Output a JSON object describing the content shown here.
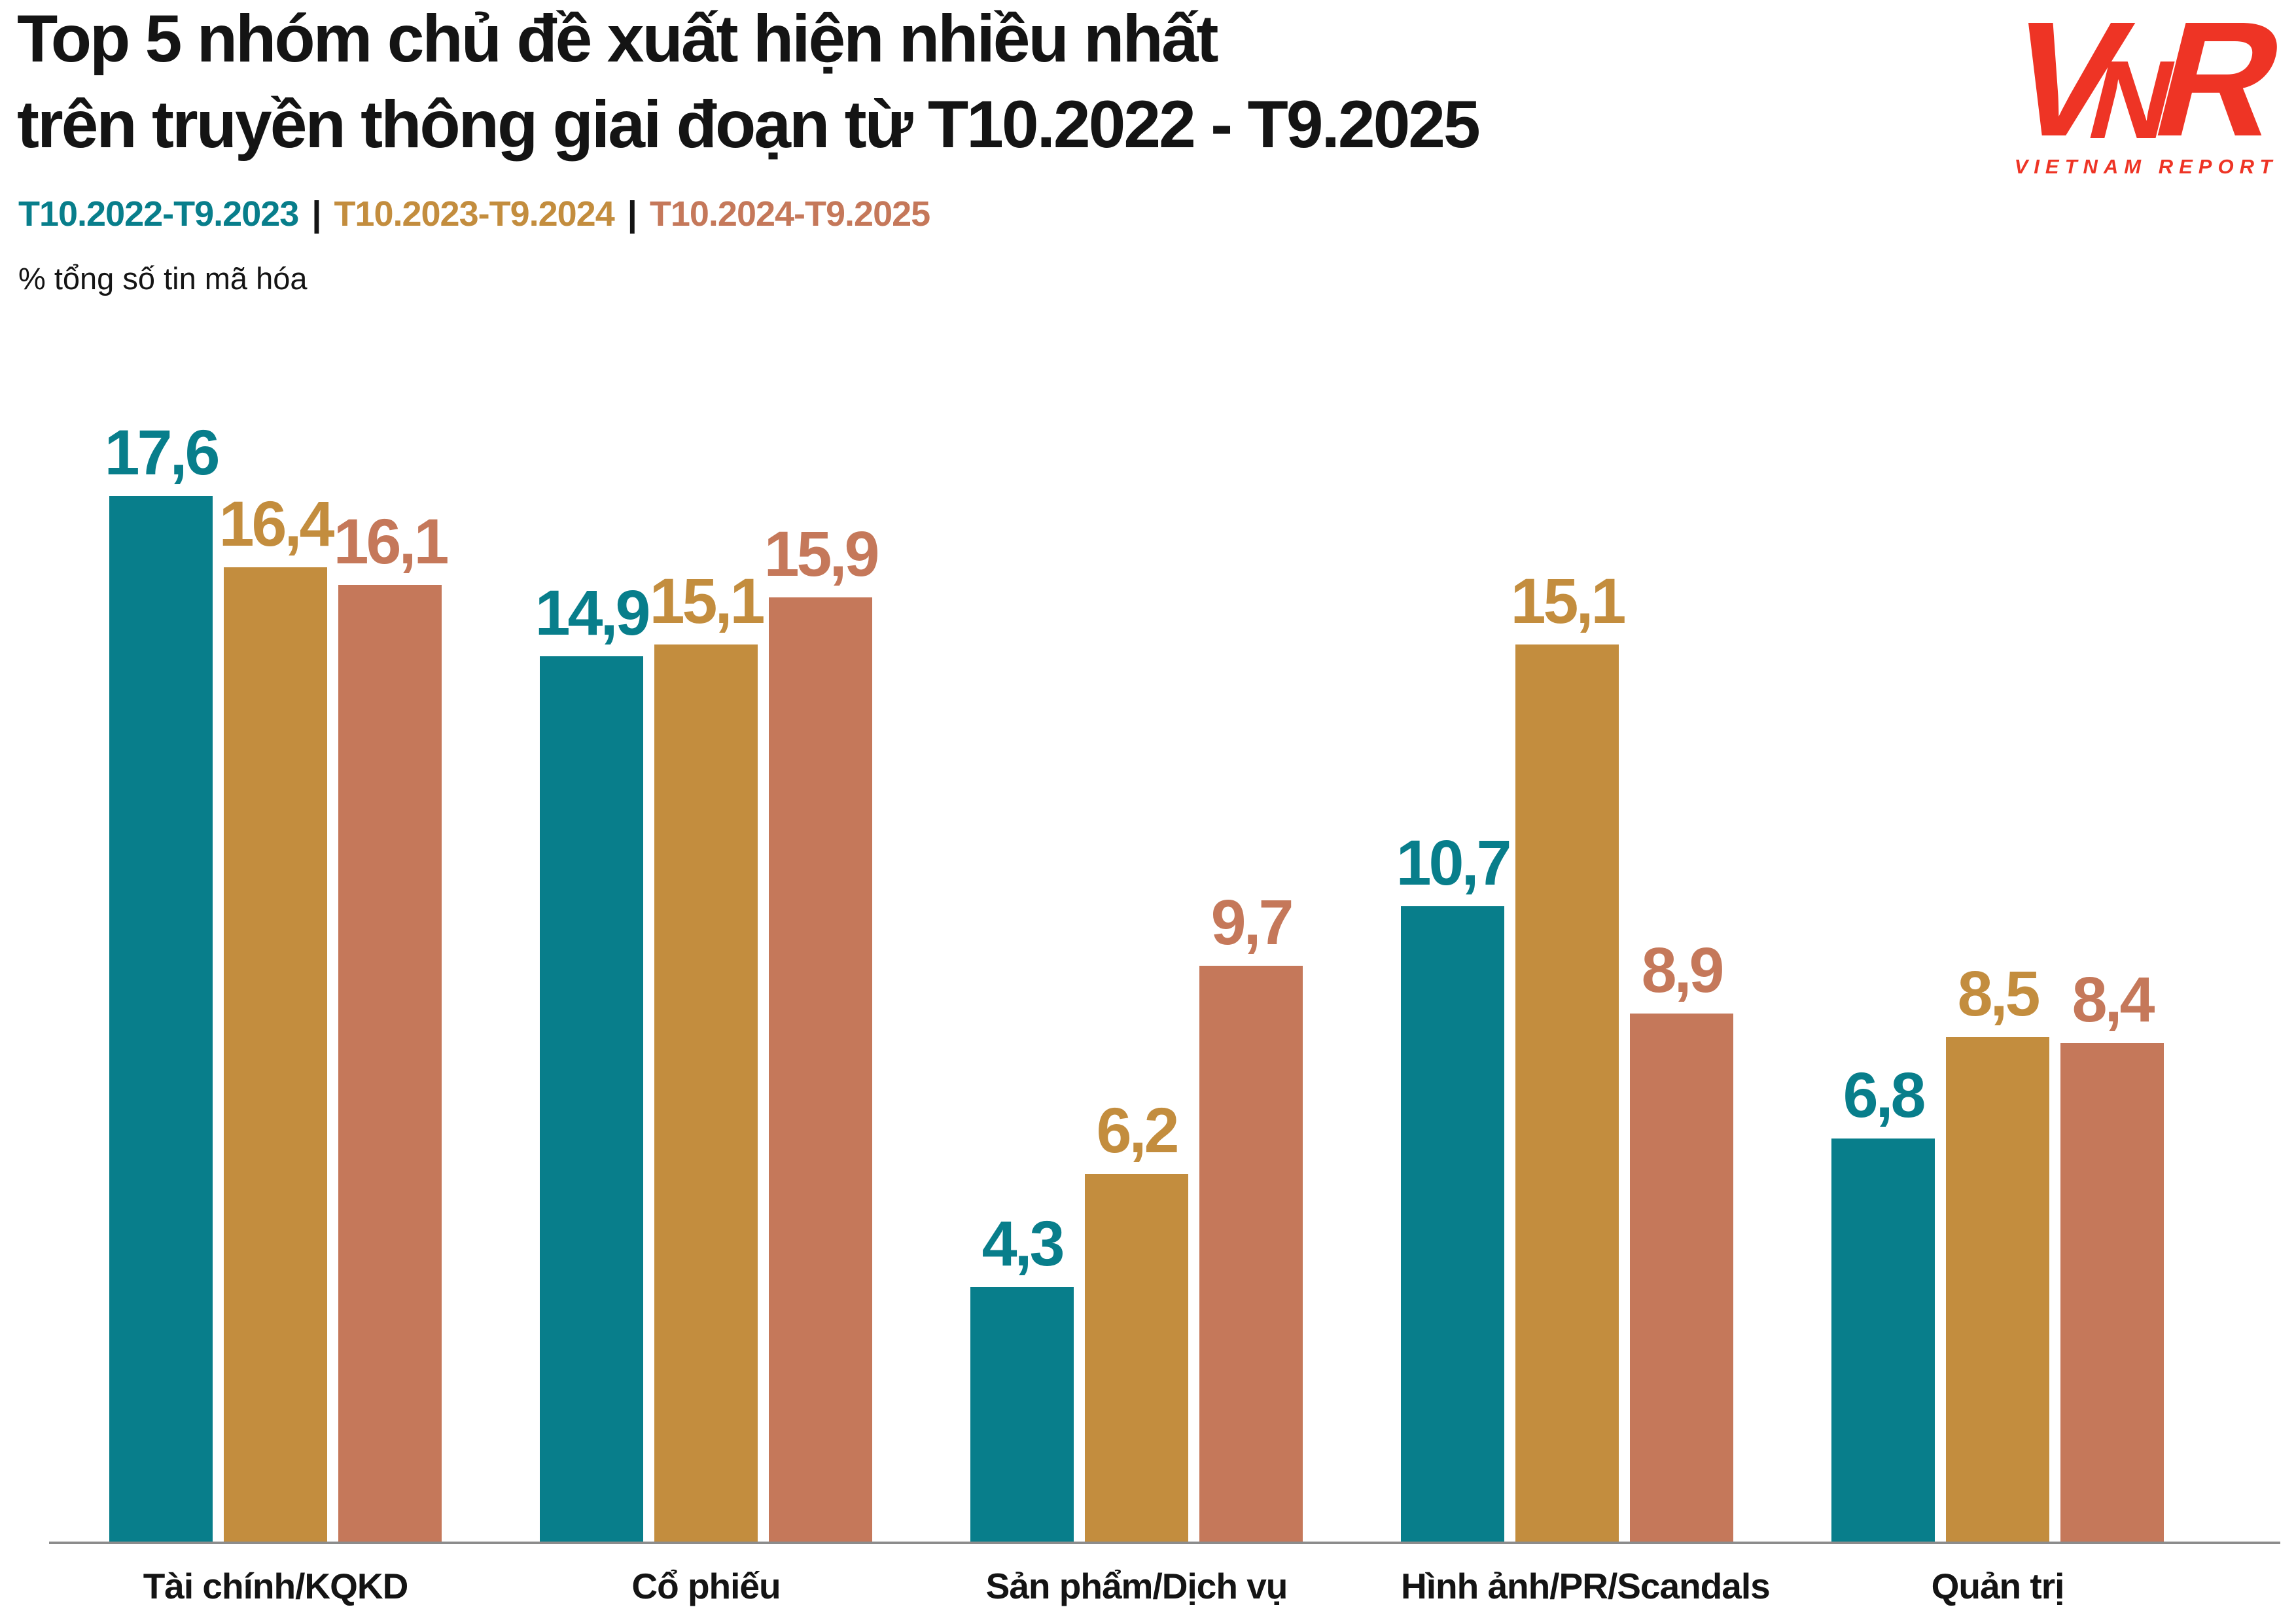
{
  "header": {
    "title_line1": "Top 5 nhóm chủ đề xuất hiện nhiều nhất",
    "title_line2": "trên truyền thông giai đoạn từ T10.2022 - T9.2025",
    "subtitle": "% tổng số tin mã hóa"
  },
  "legend": {
    "separator": "|",
    "items": [
      {
        "label": "T10.2022-T9.2023",
        "color": "#087E8B"
      },
      {
        "label": "T10.2023-T9.2024",
        "color": "#C38D3E"
      },
      {
        "label": "T10.2024-T9.2025",
        "color": "#C5785A"
      }
    ]
  },
  "logo": {
    "letters": [
      "V",
      "N",
      "R"
    ],
    "subtext": "VIETNAM REPORT",
    "color": "#EE3425"
  },
  "chart_data": {
    "type": "bar",
    "title": "Top 5 nhóm chủ đề xuất hiện nhiều nhất trên truyền thông giai đoạn từ T10.2022 - T9.2025",
    "xlabel": "",
    "ylabel": "% tổng số tin mã hóa",
    "categories": [
      "Tài chính/KQKD",
      "Cổ phiếu",
      "Sản phẩm/Dịch vụ",
      "Hình ảnh/PR/Scandals",
      "Quản trị"
    ],
    "series": [
      {
        "name": "T10.2022-T9.2023",
        "color": "#087E8B",
        "values": [
          17.6,
          14.9,
          4.3,
          10.7,
          6.8
        ]
      },
      {
        "name": "T10.2023-T9.2024",
        "color": "#C38D3E",
        "values": [
          16.4,
          15.1,
          6.2,
          15.1,
          8.5
        ]
      },
      {
        "name": "T10.2024-T9.2025",
        "color": "#C5785A",
        "values": [
          16.1,
          15.9,
          9.7,
          8.9,
          8.4
        ]
      }
    ],
    "ylim": [
      0,
      19.8
    ],
    "grid": false,
    "y_axis_visible": false,
    "legend_position": "top-left",
    "data_labels": true,
    "value_format": "decimal-comma"
  }
}
